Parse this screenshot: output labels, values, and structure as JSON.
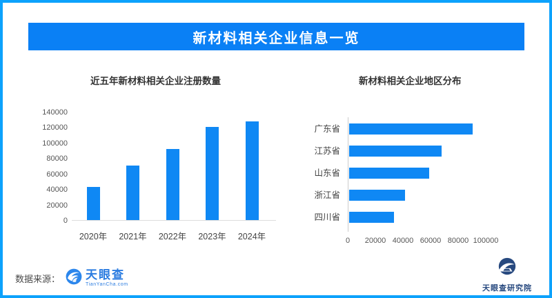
{
  "header": {
    "title": "新材料相关企业信息一览"
  },
  "charts": {
    "left": {
      "title": "近五年新材料相关企业注册数量"
    },
    "right": {
      "title": "新材料相关企业地区分布"
    }
  },
  "footer": {
    "source_label": "数据来源：",
    "brand_name": "天眼查",
    "brand_sub": "TianYanCha.com",
    "institute_name": "天眼查研究院"
  },
  "colors": {
    "page_border": "#0DA2FC",
    "header_bg": "#0A80F5",
    "bar_blue": "#0F88F4",
    "tianyancha_blue": "#2B7CE0",
    "institute_navy": "#27497F"
  },
  "chart_data": [
    {
      "type": "bar",
      "orientation": "vertical",
      "title": "近五年新材料相关企业注册数量",
      "categories": [
        "2020年",
        "2021年",
        "2022年",
        "2023年",
        "2024年"
      ],
      "values": [
        42500,
        70000,
        91500,
        120000,
        127500
      ],
      "ylabel": "",
      "xlabel": "",
      "ylim": [
        0,
        140000
      ],
      "yticks": [
        0,
        20000,
        40000,
        60000,
        80000,
        100000,
        120000,
        140000
      ],
      "grid": false,
      "legend": "none",
      "bar_color": "#0F88F4"
    },
    {
      "type": "bar",
      "orientation": "horizontal",
      "title": "新材料相关企业地区分布",
      "categories": [
        "广东省",
        "江苏省",
        "山东省",
        "浙江省",
        "四川省"
      ],
      "values": [
        89500,
        67000,
        58000,
        40500,
        32500
      ],
      "ylabel": "",
      "xlabel": "",
      "xlim": [
        0,
        100000
      ],
      "xticks": [
        0,
        20000,
        40000,
        60000,
        80000,
        100000
      ],
      "grid": false,
      "legend": "none",
      "bar_color": "#0F88F4"
    }
  ]
}
